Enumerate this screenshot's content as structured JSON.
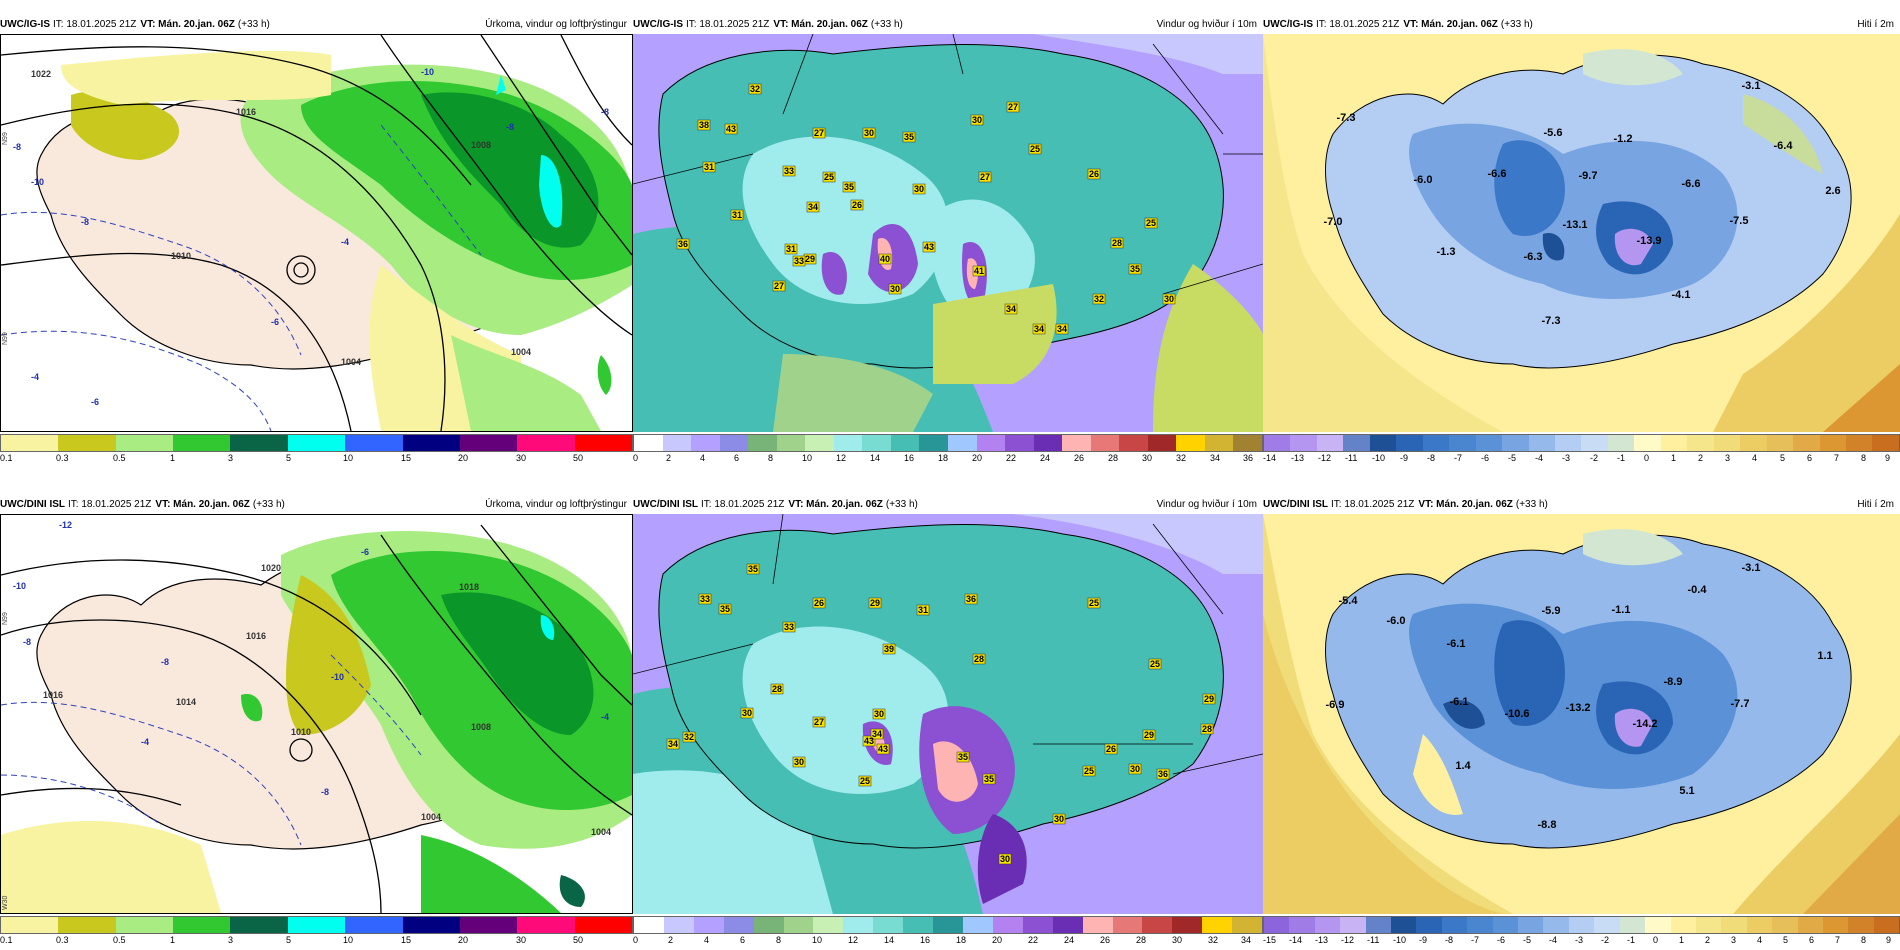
{
  "panels": [
    {
      "id": "igis-precip",
      "model": "UWC/IG-IS",
      "it": "IT: 18.01.2025 21Z",
      "vt": "VT: Mán. 20.jan. 06Z",
      "lead": "(+33 h)",
      "title": "Úrkoma, vindur og loftþrýstingur",
      "colorbar": [
        "0.1",
        "0.3",
        "0.5",
        "1",
        "3",
        "5",
        "10",
        "15",
        "20",
        "30",
        "50"
      ],
      "colors": [
        "#f7f3a0",
        "#c8c81e",
        "#a8ec82",
        "#32c832",
        "#0a9628",
        "#0a6446",
        "#00ffef",
        "#3264ff",
        "#1e1eb4",
        "#000080",
        "#64007a",
        "#a8006e",
        "#ff0a78",
        "#ff0000"
      ],
      "isobars": [
        "1022",
        "1016",
        "1010",
        "1008",
        "1004",
        "1004"
      ],
      "temps": [
        "-8",
        "-10",
        "-8",
        "-6",
        "-4",
        "-4",
        "-6",
        "-8",
        "-10",
        "-8"
      ]
    },
    {
      "id": "igis-wind",
      "model": "UWC/IG-IS",
      "it": "IT: 18.01.2025 21Z",
      "vt": "VT: Mán. 20.jan. 06Z",
      "lead": "(+33 h)",
      "title": "Vindur og hviður í 10m",
      "colorbar": [
        "0",
        "2",
        "4",
        "6",
        "8",
        "10",
        "12",
        "14",
        "16",
        "18",
        "20",
        "22",
        "24",
        "26",
        "28",
        "30",
        "32",
        "34",
        "36"
      ],
      "gusts": [
        "32",
        "38",
        "43",
        "27",
        "30",
        "35",
        "30",
        "27",
        "25",
        "31",
        "33",
        "25",
        "35",
        "26",
        "30",
        "27",
        "34",
        "31",
        "26",
        "40",
        "43",
        "41",
        "27",
        "29",
        "36",
        "34",
        "31",
        "25",
        "28",
        "30",
        "33",
        "34",
        "32",
        "35",
        "34",
        "30",
        "25"
      ]
    },
    {
      "id": "igis-temp",
      "model": "UWC/IG-IS",
      "it": "IT: 18.01.2025 21Z",
      "vt": "VT: Mán. 20.jan. 06Z",
      "lead": "(+33 h)",
      "title": "Hiti í 2m",
      "colorbar": [
        "-14",
        "-13",
        "-12",
        "-11",
        "-10",
        "-9",
        "-8",
        "-7",
        "-6",
        "-5",
        "-4",
        "-3",
        "-2",
        "-1",
        "0",
        "1",
        "2",
        "3",
        "4",
        "5",
        "6",
        "7",
        "8",
        "9"
      ],
      "temps": [
        "-7.3",
        "-5.6",
        "-1.2",
        "-3.1",
        "-6.4",
        "-6.0",
        "-6.6",
        "-9.7",
        "-6.6",
        "-7.0",
        "-13.1",
        "-13.9",
        "-7.5",
        "2.6",
        "-1.3",
        "-6.3",
        "-7.3",
        "-4.1"
      ]
    },
    {
      "id": "dini-precip",
      "model": "UWC/DINI ISL",
      "it": "IT: 18.01.2025 21Z",
      "vt": "VT: Mán. 20.jan. 06Z",
      "lead": "(+33 h)",
      "title": "Úrkoma, vindur og loftþrýstingur",
      "colorbar": [
        "0.1",
        "0.3",
        "0.5",
        "1",
        "3",
        "5",
        "10",
        "15",
        "20",
        "30",
        "50"
      ],
      "isobars": [
        "1020",
        "1016",
        "1018",
        "1016",
        "1014",
        "1010",
        "1008",
        "1004",
        "1004"
      ],
      "temps": [
        "-12",
        "-10",
        "-8",
        "-8",
        "-10",
        "-6",
        "-4",
        "-8",
        "-4"
      ]
    },
    {
      "id": "dini-wind",
      "model": "UWC/DINI ISL",
      "it": "IT: 18.01.2025 21Z",
      "vt": "VT: Mán. 20.jan. 06Z",
      "lead": "(+33 h)",
      "title": "Vindur og hviður í 10m",
      "colorbar": [
        "0",
        "2",
        "4",
        "6",
        "8",
        "10",
        "12",
        "14",
        "16",
        "18",
        "20",
        "22",
        "24",
        "26",
        "28",
        "30",
        "32",
        "34"
      ],
      "gusts": [
        "35",
        "33",
        "35",
        "33",
        "26",
        "29",
        "31",
        "36",
        "25",
        "28",
        "30",
        "25",
        "39",
        "29",
        "34",
        "28",
        "27",
        "32",
        "43",
        "35",
        "36",
        "29",
        "28",
        "26",
        "30",
        "43",
        "30",
        "30",
        "35",
        "25",
        "34",
        "30",
        "25",
        "30"
      ]
    },
    {
      "id": "dini-temp",
      "model": "UWC/DINI ISL",
      "it": "IT: 18.01.2025 21Z",
      "vt": "VT: Mán. 20.jan. 06Z",
      "lead": "(+33 h)",
      "title": "Hiti í 2m",
      "colorbar": [
        "-15",
        "-14",
        "-13",
        "-12",
        "-11",
        "-10",
        "-9",
        "-8",
        "-7",
        "-6",
        "-5",
        "-4",
        "-3",
        "-2",
        "-1",
        "0",
        "1",
        "2",
        "3",
        "4",
        "5",
        "6",
        "7",
        "8",
        "9"
      ],
      "temps": [
        "-5.4",
        "-6.0",
        "-5.9",
        "-1.1",
        "-0.4",
        "-3.1",
        "-6.1",
        "-6.1",
        "-8.9",
        "1.1",
        "-6.9",
        "-10.6",
        "-13.2",
        "-14.2",
        "-7.7",
        "1.4",
        "5.1",
        "-8.8"
      ]
    }
  ],
  "side_labels": {
    "a": "N99",
    "b": "N99",
    "c": "N99",
    "d": "W30"
  },
  "colors": {
    "wind": [
      "#ffffff",
      "#c8c8ff",
      "#b4a0ff",
      "#8c8ce6",
      "#78b478",
      "#a0d28c",
      "#b4e6a0",
      "#c8f0b4",
      "#e6f0a0",
      "#c8dc64",
      "#a0ebeb",
      "#78dcd2",
      "#46beb4",
      "#289696",
      "#a0c8ff",
      "#b482f0",
      "#8c50d2",
      "#6a2eb4",
      "#ffb4b4",
      "#e67878",
      "#c84646",
      "#a02828",
      "#ffd200",
      "#d2b432",
      "#a08232"
    ],
    "temp": [
      "#8c64dc",
      "#a07ce6",
      "#b496f0",
      "#6482c8",
      "#2850a0",
      "#1e5096",
      "#2a64b4",
      "#3c78c8",
      "#5a91d7",
      "#78a5e1",
      "#96b9ec",
      "#b4cdf2",
      "#c8dcf5",
      "#d2e6d2",
      "#fffac8",
      "#fff0a0",
      "#f5e68c",
      "#f0dc78",
      "#ebcd64",
      "#e6be5a",
      "#e1aa46",
      "#dc9632",
      "#d28228",
      "#c86e1e",
      "#be5a14"
    ]
  }
}
